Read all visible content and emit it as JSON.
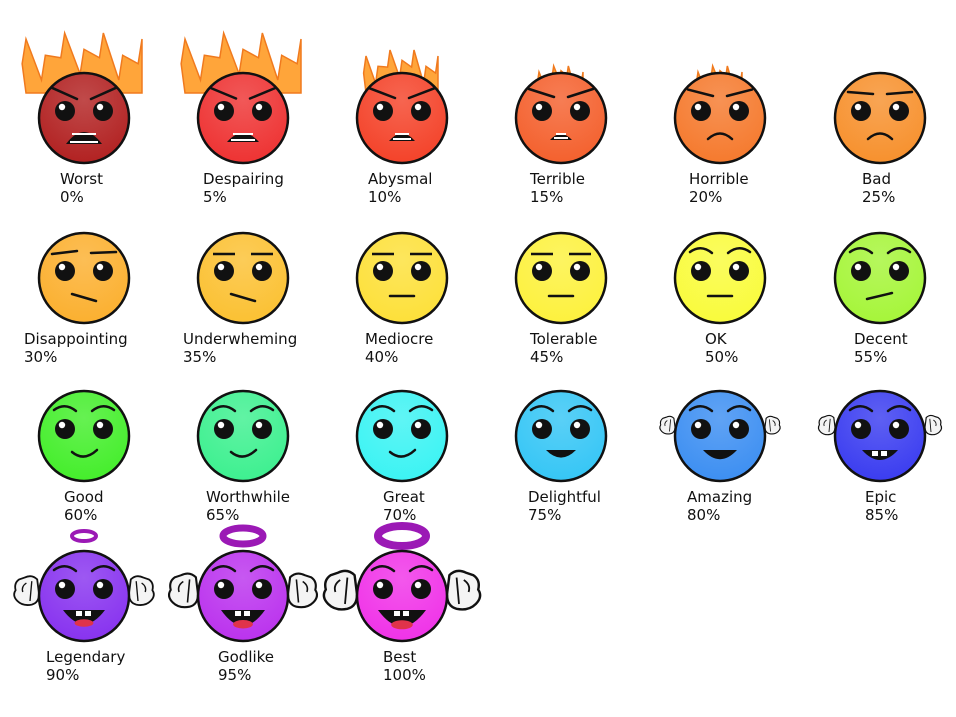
{
  "faces": [
    {
      "name": "Worst",
      "percent": "0%",
      "color": "#b22222",
      "flames": 3
    },
    {
      "name": "Despairing",
      "percent": "5%",
      "color": "#ee3333",
      "flames": 3
    },
    {
      "name": "Abysmal",
      "percent": "10%",
      "color": "#f4432a",
      "flames": 2
    },
    {
      "name": "Terrible",
      "percent": "15%",
      "color": "#f4612e",
      "flames": 1
    },
    {
      "name": "Horrible",
      "percent": "20%",
      "color": "#f57a2e",
      "flames": 1
    },
    {
      "name": "Bad",
      "percent": "25%",
      "color": "#f7912e",
      "flames": 0
    },
    {
      "name": "Disappointing",
      "percent": "30%",
      "color": "#fbb030",
      "flames": 0
    },
    {
      "name": "Underwheming",
      "percent": "35%",
      "color": "#fbc133",
      "flames": 0
    },
    {
      "name": "Mediocre",
      "percent": "40%",
      "color": "#fde03a",
      "flames": 0
    },
    {
      "name": "Tolerable",
      "percent": "45%",
      "color": "#fdf13e",
      "flames": 0
    },
    {
      "name": "OK",
      "percent": "50%",
      "color": "#f9fb3c",
      "flames": 0
    },
    {
      "name": "Decent",
      "percent": "55%",
      "color": "#a6f53a",
      "flames": 0
    },
    {
      "name": "Good",
      "percent": "60%",
      "color": "#45ee2c",
      "flames": 0
    },
    {
      "name": "Worthwhile",
      "percent": "65%",
      "color": "#3ef090",
      "flames": 0
    },
    {
      "name": "Great",
      "percent": "70%",
      "color": "#3cf3f3",
      "flames": 0
    },
    {
      "name": "Delightful",
      "percent": "75%",
      "color": "#36c6f5",
      "flames": 0
    },
    {
      "name": "Amazing",
      "percent": "80%",
      "color": "#3d8ff2",
      "flames": 0
    },
    {
      "name": "Epic",
      "percent": "85%",
      "color": "#3b3df0",
      "flames": 0
    },
    {
      "name": "Legendary",
      "percent": "90%",
      "color": "#8833ef",
      "flames": 0
    },
    {
      "name": "Godlike",
      "percent": "95%",
      "color": "#bb33ee",
      "flames": 0
    },
    {
      "name": "Best",
      "percent": "100%",
      "color": "#f033e8",
      "flames": 0
    }
  ]
}
